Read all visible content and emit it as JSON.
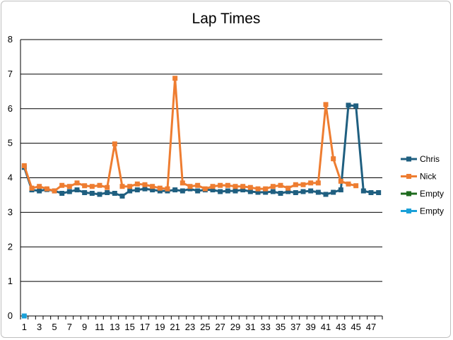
{
  "chart_data": {
    "type": "line",
    "title": "Lap Times",
    "xlabel": "",
    "ylabel": "",
    "ylim": [
      0,
      8
    ],
    "yticks": [
      0,
      1,
      2,
      3,
      4,
      5,
      6,
      7,
      8
    ],
    "x": [
      1,
      2,
      3,
      4,
      5,
      6,
      7,
      8,
      9,
      10,
      11,
      12,
      13,
      14,
      15,
      16,
      17,
      18,
      19,
      20,
      21,
      22,
      23,
      24,
      25,
      26,
      27,
      28,
      29,
      30,
      31,
      32,
      33,
      34,
      35,
      36,
      37,
      38,
      39,
      40,
      41,
      42,
      43,
      44,
      45,
      46,
      47,
      48
    ],
    "xtick_labels": [
      "1",
      "3",
      "5",
      "7",
      "9",
      "11",
      "13",
      "15",
      "17",
      "19",
      "21",
      "23",
      "25",
      "27",
      "29",
      "31",
      "33",
      "35",
      "37",
      "39",
      "41",
      "43",
      "45",
      "47"
    ],
    "grid": true,
    "legend_position": "right",
    "series": [
      {
        "name": "Chris",
        "color": "#1f5f80",
        "x": [
          1,
          2,
          3,
          4,
          5,
          6,
          7,
          8,
          9,
          10,
          11,
          12,
          13,
          14,
          15,
          16,
          17,
          18,
          19,
          20,
          21,
          22,
          23,
          24,
          25,
          26,
          27,
          28,
          29,
          30,
          31,
          32,
          33,
          34,
          35,
          36,
          37,
          38,
          39,
          40,
          41,
          42,
          43,
          44,
          45,
          46,
          47,
          48
        ],
        "values": [
          4.3,
          3.65,
          3.62,
          3.66,
          3.62,
          3.55,
          3.6,
          3.65,
          3.57,
          3.55,
          3.52,
          3.57,
          3.55,
          3.47,
          3.62,
          3.65,
          3.68,
          3.65,
          3.62,
          3.62,
          3.65,
          3.62,
          3.68,
          3.62,
          3.65,
          3.65,
          3.6,
          3.62,
          3.62,
          3.65,
          3.6,
          3.58,
          3.58,
          3.6,
          3.55,
          3.6,
          3.57,
          3.6,
          3.62,
          3.58,
          3.52,
          3.58,
          3.65,
          6.1,
          6.08,
          3.62,
          3.57,
          3.57
        ]
      },
      {
        "name": "Nick",
        "color": "#ee7d31",
        "x": [
          1,
          2,
          3,
          4,
          5,
          6,
          7,
          8,
          9,
          10,
          11,
          12,
          13,
          14,
          15,
          16,
          17,
          18,
          19,
          20,
          21,
          22,
          23,
          24,
          25,
          26,
          27,
          28,
          29,
          30,
          31,
          32,
          33,
          34,
          35,
          36,
          37,
          38,
          39,
          40,
          41,
          42,
          43,
          44,
          45
        ],
        "values": [
          4.35,
          3.7,
          3.75,
          3.68,
          3.62,
          3.78,
          3.75,
          3.85,
          3.77,
          3.75,
          3.78,
          3.72,
          4.98,
          3.75,
          3.75,
          3.82,
          3.8,
          3.75,
          3.7,
          3.68,
          6.88,
          3.85,
          3.75,
          3.78,
          3.68,
          3.75,
          3.78,
          3.78,
          3.75,
          3.75,
          3.72,
          3.68,
          3.68,
          3.75,
          3.78,
          3.7,
          3.8,
          3.8,
          3.85,
          3.85,
          6.12,
          4.55,
          3.9,
          3.82,
          3.77
        ]
      },
      {
        "name": "Empty",
        "color": "#1e6b1e",
        "x": [],
        "values": []
      },
      {
        "name": "Empty",
        "color": "#1aa0d8",
        "x": [
          1
        ],
        "values": [
          0
        ]
      }
    ]
  }
}
